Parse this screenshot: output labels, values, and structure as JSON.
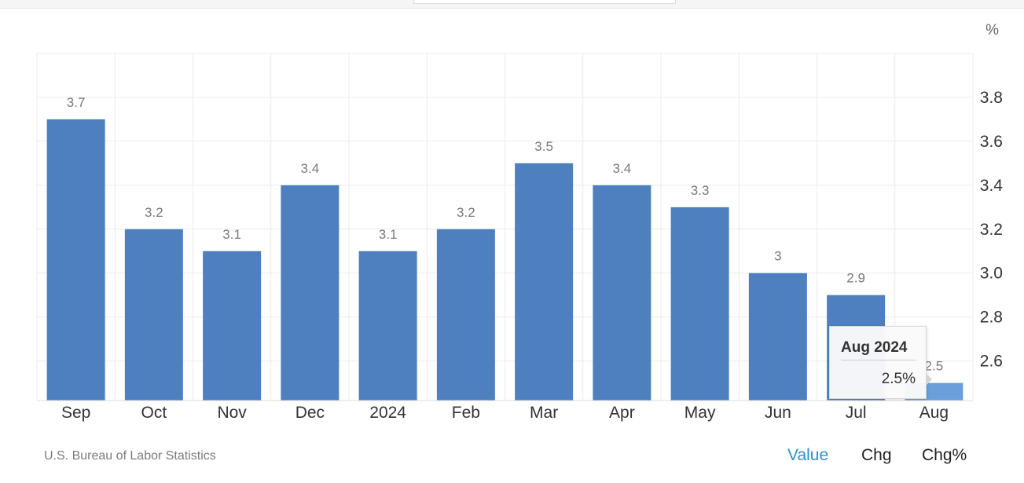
{
  "chart_data": {
    "type": "bar",
    "categories": [
      "Sep",
      "Oct",
      "Nov",
      "Dec",
      "2024",
      "Feb",
      "Mar",
      "Apr",
      "May",
      "Jun",
      "Jul",
      "Aug"
    ],
    "values": [
      3.7,
      3.2,
      3.1,
      3.4,
      3.1,
      3.2,
      3.5,
      3.4,
      3.3,
      3.0,
      2.9,
      2.5
    ],
    "value_labels": [
      "3.7",
      "3.2",
      "3.1",
      "3.4",
      "3.1",
      "3.2",
      "3.5",
      "3.4",
      "3.3",
      "3",
      "2.9",
      "2.5"
    ],
    "ylim": [
      2.42,
      4.0
    ],
    "yticks": [
      2.6,
      2.8,
      3.0,
      3.2,
      3.4,
      3.6,
      3.8
    ],
    "ytick_labels": [
      "2.6",
      "2.8",
      "3.0",
      "3.2",
      "3.4",
      "3.6",
      "3.8"
    ],
    "yunit": "%",
    "y_axis_side": "right",
    "grid": true,
    "bar_color": "#4e80bf",
    "highlight_color": "#6a9fdc",
    "highlighted_index": 11
  },
  "tooltip": {
    "title": "Aug 2024",
    "value": "2.5%"
  },
  "source": "U.S. Bureau of Labor Statistics",
  "toggles": {
    "value": "Value",
    "chg": "Chg",
    "chg_pct": "Chg%"
  },
  "colors": {
    "active_toggle": "#2a8fd8"
  }
}
